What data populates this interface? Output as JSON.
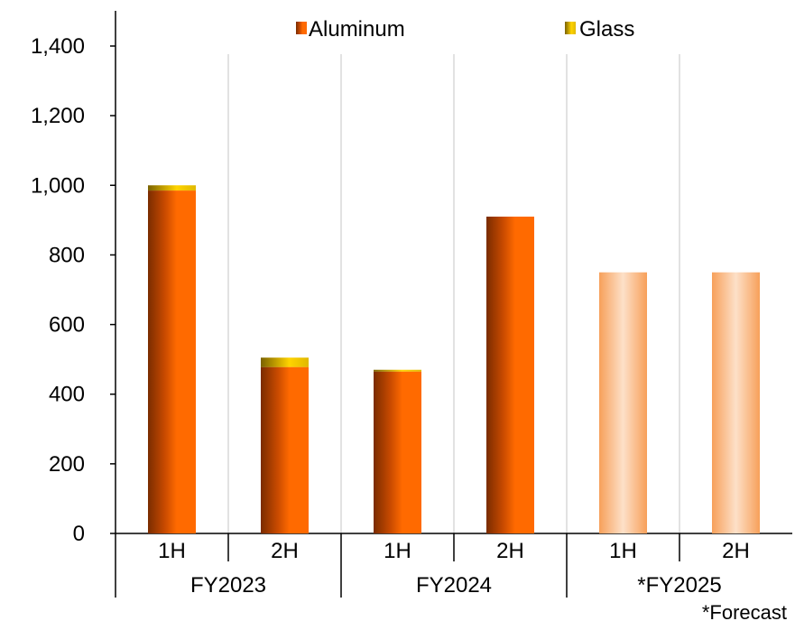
{
  "chart_data": {
    "type": "bar",
    "stacked": true,
    "categories": [
      "1H",
      "2H",
      "1H",
      "2H",
      "1H",
      "2H"
    ],
    "groups": [
      {
        "label": "FY2023",
        "categories": [
          "1H",
          "2H"
        ]
      },
      {
        "label": "FY2024",
        "categories": [
          "1H",
          "2H"
        ]
      },
      {
        "label": "*FY2025",
        "categories": [
          "1H",
          "2H"
        ]
      }
    ],
    "series": [
      {
        "name": "Aluminum",
        "values": [
          985,
          478,
          465,
          910,
          750,
          750
        ],
        "color": "#e85d00"
      },
      {
        "name": "Glass",
        "values": [
          15,
          27,
          5,
          0,
          0,
          0
        ],
        "color": "#d4b000"
      }
    ],
    "forecast_indices": [
      4,
      5
    ],
    "forecast_color": "#f7a05a",
    "ylim": [
      0,
      1500
    ],
    "yticks": [
      0,
      200,
      400,
      600,
      800,
      1000,
      1200,
      1400
    ],
    "ytick_labels": [
      "0",
      "200",
      "400",
      "600",
      "800",
      "1,000",
      "1,200",
      "1,400"
    ],
    "legend_position": "top",
    "grid": false,
    "footnote": "*Forecast"
  }
}
